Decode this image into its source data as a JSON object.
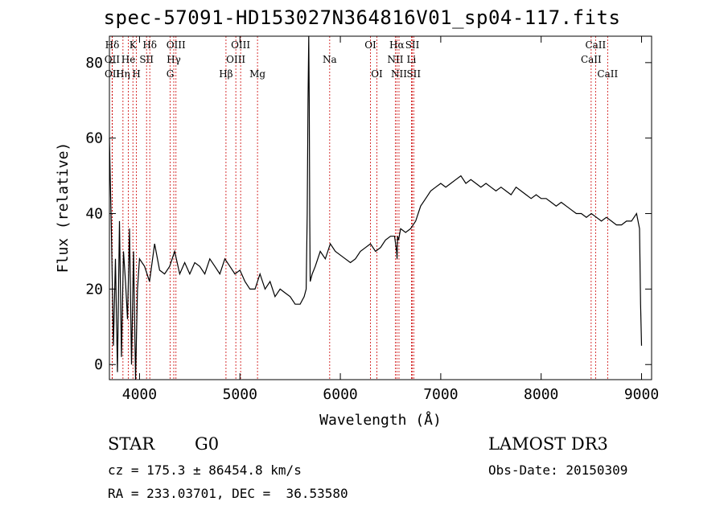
{
  "title": "spec-57091-HD153027N364816V01_sp04-117.fits",
  "footer": {
    "object_class": "STAR",
    "subclass": "G0",
    "survey": "LAMOST DR3",
    "cz": "cz = 175.3 ± 86454.8 km/s",
    "obs_date": "Obs-Date: 20150309",
    "coords": "RA = 233.03701, DEC =  36.53580"
  },
  "colors": {
    "line": "#000000",
    "marker": "#cc0000",
    "background": "#ffffff"
  },
  "chart_data": {
    "type": "line",
    "xlabel": "Wavelength (Å)",
    "ylabel": "Flux (relative)",
    "xlim": [
      3700,
      9100
    ],
    "ylim": [
      -4,
      87
    ],
    "x_ticks": [
      4000,
      5000,
      6000,
      7000,
      8000,
      9000
    ],
    "y_ticks": [
      0,
      20,
      40,
      60,
      80
    ],
    "grid": false,
    "series": [
      {
        "x": [
          3700,
          3720,
          3740,
          3760,
          3780,
          3800,
          3820,
          3840,
          3860,
          3880,
          3900,
          3920,
          3940,
          3960,
          3980,
          4000,
          4050,
          4100,
          4150,
          4200,
          4250,
          4300,
          4350,
          4400,
          4450,
          4500,
          4550,
          4600,
          4650,
          4700,
          4750,
          4800,
          4850,
          4900,
          4950,
          5000,
          5050,
          5100,
          5150,
          5200,
          5250,
          5300,
          5350,
          5400,
          5450,
          5500,
          5550,
          5600,
          5640,
          5660,
          5670,
          5678,
          5685,
          5690,
          5695,
          5700,
          5720,
          5750,
          5800,
          5850,
          5900,
          5950,
          6000,
          6050,
          6100,
          6150,
          6200,
          6250,
          6300,
          6350,
          6400,
          6450,
          6500,
          6540,
          6560,
          6565,
          6570,
          6580,
          6600,
          6650,
          6700,
          6750,
          6800,
          6850,
          6900,
          6950,
          7000,
          7050,
          7100,
          7150,
          7200,
          7250,
          7300,
          7350,
          7400,
          7450,
          7500,
          7550,
          7600,
          7650,
          7700,
          7750,
          7800,
          7850,
          7900,
          7950,
          8000,
          8050,
          8100,
          8150,
          8200,
          8250,
          8300,
          8350,
          8400,
          8450,
          8500,
          8550,
          8600,
          8650,
          8700,
          8750,
          8800,
          8850,
          8900,
          8950,
          8980,
          8990,
          9000
        ],
        "y": [
          60,
          35,
          5,
          28,
          -2,
          38,
          2,
          30,
          22,
          12,
          36,
          0,
          30,
          -5,
          20,
          28,
          26,
          22,
          32,
          25,
          24,
          26,
          30,
          24,
          27,
          24,
          27,
          26,
          24,
          28,
          26,
          24,
          28,
          26,
          24,
          25,
          22,
          20,
          20,
          24,
          20,
          22,
          18,
          20,
          19,
          18,
          16,
          16,
          18,
          20,
          40,
          70,
          87,
          70,
          40,
          22,
          24,
          26,
          30,
          28,
          32,
          30,
          29,
          28,
          27,
          28,
          30,
          31,
          32,
          30,
          31,
          33,
          34,
          34,
          30,
          28,
          34,
          33,
          36,
          35,
          36,
          38,
          42,
          44,
          46,
          47,
          48,
          47,
          48,
          49,
          50,
          48,
          49,
          48,
          47,
          48,
          47,
          46,
          47,
          46,
          45,
          47,
          46,
          45,
          44,
          45,
          44,
          44,
          43,
          42,
          43,
          42,
          41,
          40,
          40,
          39,
          40,
          39,
          38,
          39,
          38,
          37,
          37,
          38,
          38,
          40,
          36,
          16,
          5
        ]
      }
    ],
    "line_markers": [
      {
        "label": "Hδ",
        "wl": 3728,
        "row": 0
      },
      {
        "label": "OII",
        "wl": 3727,
        "row": 1
      },
      {
        "label": "OII",
        "wl": 3729,
        "row": 2
      },
      {
        "label": "Hη",
        "wl": 3835,
        "row": 2
      },
      {
        "label": "K",
        "wl": 3934,
        "row": 0
      },
      {
        "label": "He",
        "wl": 3889,
        "row": 1
      },
      {
        "label": "H",
        "wl": 3969,
        "row": 2
      },
      {
        "label": "Hδ",
        "wl": 4102,
        "row": 0
      },
      {
        "label": "SII",
        "wl": 4070,
        "row": 1
      },
      {
        "label": "OIII",
        "wl": 4363,
        "row": 0
      },
      {
        "label": "Hγ",
        "wl": 4341,
        "row": 1
      },
      {
        "label": "G",
        "wl": 4305,
        "row": 2
      },
      {
        "label": "OIII",
        "wl": 5007,
        "row": 0
      },
      {
        "label": "OIII",
        "wl": 4959,
        "row": 1
      },
      {
        "label": "Hβ",
        "wl": 4861,
        "row": 2
      },
      {
        "label": "Mg",
        "wl": 5175,
        "row": 2
      },
      {
        "label": "Na",
        "wl": 5894,
        "row": 1
      },
      {
        "label": "OI",
        "wl": 6300,
        "row": 0
      },
      {
        "label": "OI",
        "wl": 6364,
        "row": 2
      },
      {
        "label": "Hα",
        "wl": 6563,
        "row": 0
      },
      {
        "label": "NII",
        "wl": 6548,
        "row": 1
      },
      {
        "label": "NII",
        "wl": 6584,
        "row": 2
      },
      {
        "label": "SII",
        "wl": 6717,
        "row": 0
      },
      {
        "label": "Li",
        "wl": 6708,
        "row": 1
      },
      {
        "label": "SII",
        "wl": 6731,
        "row": 2
      },
      {
        "label": "CaII",
        "wl": 8542,
        "row": 0
      },
      {
        "label": "CaII",
        "wl": 8498,
        "row": 1
      },
      {
        "label": "CaII",
        "wl": 8662,
        "row": 2
      }
    ]
  }
}
